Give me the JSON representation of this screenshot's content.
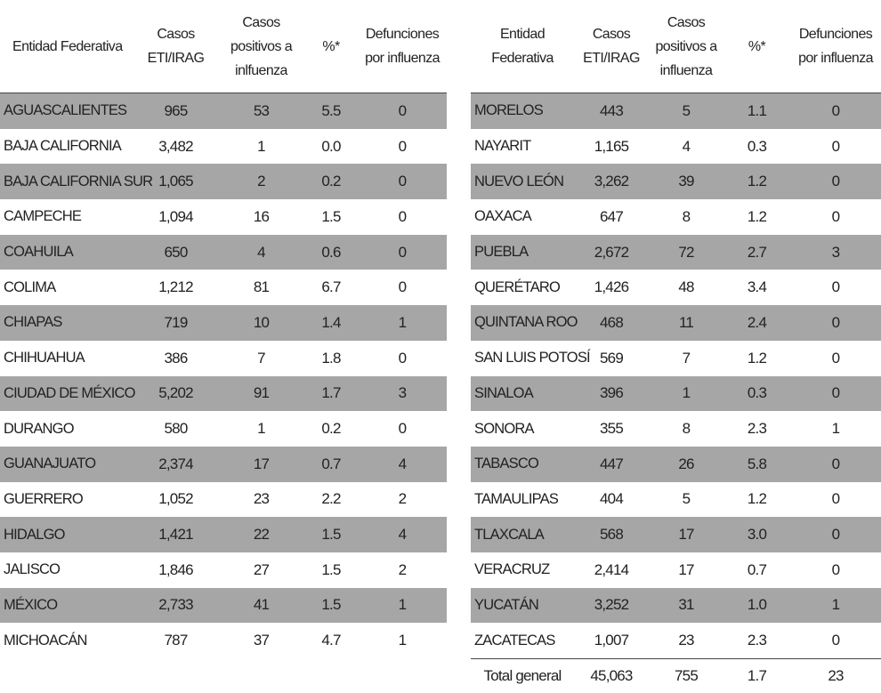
{
  "headers": {
    "left": [
      "Entidad Federativa",
      "Casos ETI/IRAG",
      "Casos positivos a inlfuenza",
      "%*",
      "Defunciones por influenza"
    ],
    "right": [
      "Entidad Federativa",
      "Casos ETI/IRAG",
      "Casos positivos a influenza",
      "%*",
      "Defunciones por influenza"
    ]
  },
  "left_rows": [
    [
      "AGUASCALIENTES",
      "965",
      "53",
      "5.5",
      "0"
    ],
    [
      "BAJA CALIFORNIA",
      "3,482",
      "1",
      "0.0",
      "0"
    ],
    [
      "BAJA CALIFORNIA SUR",
      "1,065",
      "2",
      "0.2",
      "0"
    ],
    [
      "CAMPECHE",
      "1,094",
      "16",
      "1.5",
      "0"
    ],
    [
      "COAHUILA",
      "650",
      "4",
      "0.6",
      "0"
    ],
    [
      "COLIMA",
      "1,212",
      "81",
      "6.7",
      "0"
    ],
    [
      "CHIAPAS",
      "719",
      "10",
      "1.4",
      "1"
    ],
    [
      "CHIHUAHUA",
      "386",
      "7",
      "1.8",
      "0"
    ],
    [
      "CIUDAD DE MÉXICO",
      "5,202",
      "91",
      "1.7",
      "3"
    ],
    [
      "DURANGO",
      "580",
      "1",
      "0.2",
      "0"
    ],
    [
      "GUANAJUATO",
      "2,374",
      "17",
      "0.7",
      "4"
    ],
    [
      "GUERRERO",
      "1,052",
      "23",
      "2.2",
      "2"
    ],
    [
      "HIDALGO",
      "1,421",
      "22",
      "1.5",
      "4"
    ],
    [
      "JALISCO",
      "1,846",
      "27",
      "1.5",
      "2"
    ],
    [
      "MÉXICO",
      "2,733",
      "41",
      "1.5",
      "1"
    ],
    [
      "MICHOACÁN",
      "787",
      "37",
      "4.7",
      "1"
    ]
  ],
  "right_rows": [
    [
      "MORELOS",
      "443",
      "5",
      "1.1",
      "0"
    ],
    [
      "NAYARIT",
      "1,165",
      "4",
      "0.3",
      "0"
    ],
    [
      "NUEVO LEÓN",
      "3,262",
      "39",
      "1.2",
      "0"
    ],
    [
      "OAXACA",
      "647",
      "8",
      "1.2",
      "0"
    ],
    [
      "PUEBLA",
      "2,672",
      "72",
      "2.7",
      "3"
    ],
    [
      "QUERÉTARO",
      "1,426",
      "48",
      "3.4",
      "0"
    ],
    [
      "QUINTANA ROO",
      "468",
      "11",
      "2.4",
      "0"
    ],
    [
      "SAN LUIS POTOSÍ",
      "569",
      "7",
      "1.2",
      "0"
    ],
    [
      "SINALOA",
      "396",
      "1",
      "0.3",
      "0"
    ],
    [
      "SONORA",
      "355",
      "8",
      "2.3",
      "1"
    ],
    [
      "TABASCO",
      "447",
      "26",
      "5.8",
      "0"
    ],
    [
      "TAMAULIPAS",
      "404",
      "5",
      "1.2",
      "0"
    ],
    [
      "TLAXCALA",
      "568",
      "17",
      "3.0",
      "0"
    ],
    [
      "VERACRUZ",
      "2,414",
      "17",
      "0.7",
      "0"
    ],
    [
      "YUCATÁN",
      "3,252",
      "31",
      "1.0",
      "1"
    ],
    [
      "ZACATECAS",
      "1,007",
      "23",
      "2.3",
      "0"
    ]
  ],
  "total": [
    "Total general",
    "45,063",
    "755",
    "1.7",
    "23"
  ],
  "colors": {
    "stripe": "#a6a6a6",
    "background": "#ffffff"
  }
}
